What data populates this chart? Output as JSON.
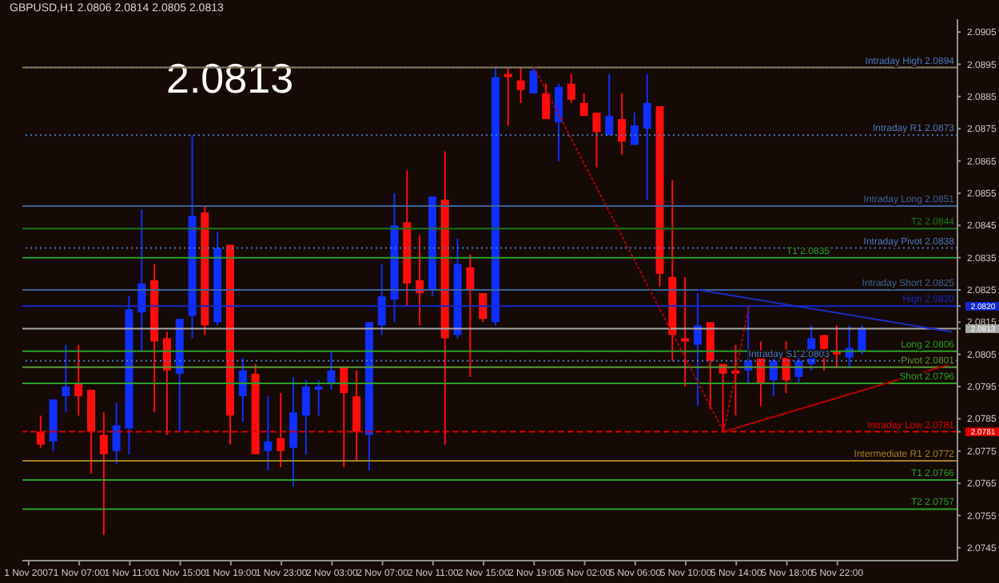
{
  "chart_data": {
    "type": "candlestick",
    "title": "GBPUSD,H1 2.0806 2.0814 2.0805 2.0813",
    "categories": [
      "1 Nov 2007",
      null,
      null,
      null,
      "1 Nov 07:00",
      null,
      null,
      null,
      "1 Nov 11:00",
      null,
      null,
      null,
      "1 Nov 15:00",
      null,
      null,
      null,
      "1 Nov 19:00",
      null,
      null,
      null,
      "1 Nov 23:00",
      null,
      null,
      null,
      "2 Nov 03:00",
      null,
      null,
      null,
      "2 Nov 07:00",
      null,
      null,
      null,
      "2 Nov 11:00",
      null,
      null,
      null,
      "2 Nov 15:00",
      null,
      null,
      null,
      "2 Nov 19:00",
      null,
      null,
      null,
      "5 Nov 02:00",
      null,
      null,
      null,
      "5 Nov 06:00",
      null,
      null,
      null,
      "5 Nov 10:00",
      null,
      null,
      null,
      "5 Nov 14:00",
      null,
      null,
      null,
      "5 Nov 18:00",
      null,
      null,
      null,
      "5 Nov 22:00",
      null,
      null,
      null,
      null,
      null,
      null,
      null,
      null,
      null
    ],
    "ohlc": [
      null,
      [
        2.0781,
        2.0786,
        2.0776,
        2.0777
      ],
      [
        2.0778,
        2.0791,
        2.0775,
        2.0791
      ],
      [
        2.0792,
        2.0808,
        2.0787,
        2.0795
      ],
      [
        2.0796,
        2.0808,
        2.0786,
        2.0792
      ],
      [
        2.0794,
        2.0794,
        2.0768,
        2.0781
      ],
      [
        2.078,
        2.0787,
        2.0749,
        2.0774
      ],
      [
        2.0775,
        2.079,
        2.0771,
        2.0783
      ],
      [
        2.0782,
        2.0823,
        2.0774,
        2.0819
      ],
      [
        2.0818,
        2.085,
        2.0806,
        2.0827
      ],
      [
        2.0828,
        2.0833,
        2.0787,
        2.0809
      ],
      [
        2.081,
        2.0812,
        2.078,
        2.08
      ],
      [
        2.0799,
        2.0816,
        2.0781,
        2.0816
      ],
      [
        2.0817,
        2.0873,
        2.081,
        2.0848
      ],
      [
        2.0849,
        2.0851,
        2.0811,
        2.0814
      ],
      [
        2.0815,
        2.0843,
        2.0814,
        2.0838
      ],
      [
        2.0839,
        2.0839,
        2.0777,
        2.0786
      ],
      [
        2.0792,
        2.0804,
        2.0784,
        2.08
      ],
      [
        2.0799,
        2.0802,
        2.0774,
        2.0774
      ],
      [
        2.0775,
        2.0792,
        2.0769,
        2.0778
      ],
      [
        2.0779,
        2.0793,
        2.077,
        2.0775
      ],
      [
        2.0776,
        2.0798,
        2.0764,
        2.0787
      ],
      [
        2.0786,
        2.0797,
        2.0774,
        2.0795
      ],
      [
        2.0794,
        2.0797,
        2.0786,
        2.0795
      ],
      [
        2.0796,
        2.0806,
        2.0794,
        2.08
      ],
      [
        2.0801,
        2.0801,
        2.077,
        2.0793
      ],
      [
        2.0792,
        2.08,
        2.0772,
        2.0781
      ],
      [
        2.078,
        2.0815,
        2.0769,
        2.0815
      ],
      [
        2.0814,
        2.0833,
        2.0811,
        2.0823
      ],
      [
        2.0822,
        2.0855,
        2.0815,
        2.0845
      ],
      [
        2.0846,
        2.0862,
        2.082,
        2.0827
      ],
      [
        2.0828,
        2.0842,
        2.0814,
        2.0824
      ],
      [
        2.0825,
        2.0854,
        2.0823,
        2.0854
      ],
      [
        2.0853,
        2.0868,
        2.0777,
        2.081
      ],
      [
        2.0811,
        2.0841,
        2.081,
        2.0833
      ],
      [
        2.0832,
        2.0836,
        2.0798,
        2.0825
      ],
      [
        2.0824,
        2.0824,
        2.0815,
        2.0816
      ],
      [
        2.0815,
        2.0894,
        2.0814,
        2.0891
      ],
      [
        2.0892,
        2.0894,
        2.0876,
        2.0891
      ],
      [
        2.089,
        2.0894,
        2.0883,
        2.0887
      ],
      [
        2.0886,
        2.0894,
        2.0886,
        2.0893
      ],
      [
        2.0886,
        2.0889,
        2.0878,
        2.0878
      ],
      [
        2.0877,
        2.0889,
        2.0865,
        2.0888
      ],
      [
        2.0889,
        2.0892,
        2.0883,
        2.0884
      ],
      [
        2.0883,
        2.0886,
        2.0879,
        2.0879
      ],
      [
        2.088,
        2.088,
        2.0863,
        2.0874
      ],
      [
        2.0873,
        2.0892,
        2.0873,
        2.0879
      ],
      [
        2.0878,
        2.0886,
        2.0867,
        2.0871
      ],
      [
        2.087,
        2.088,
        2.087,
        2.0876
      ],
      [
        2.0875,
        2.0892,
        2.0853,
        2.0883
      ],
      [
        2.0882,
        2.0882,
        2.0826,
        2.083
      ],
      [
        2.0829,
        2.0859,
        2.0803,
        2.0811
      ],
      [
        2.081,
        2.0829,
        2.0795,
        2.0809
      ],
      [
        2.0808,
        2.0824,
        2.0789,
        2.0814
      ],
      [
        2.0815,
        2.0815,
        2.0788,
        2.0803
      ],
      [
        2.0802,
        2.0802,
        2.0781,
        2.0799
      ],
      [
        2.08,
        2.0808,
        2.0786,
        2.0799
      ],
      [
        2.08,
        2.082,
        2.0796,
        2.0803
      ],
      [
        2.0804,
        2.0809,
        2.0789,
        2.0796
      ],
      [
        2.0797,
        2.0805,
        2.0792,
        2.0803
      ],
      [
        2.0804,
        2.0809,
        2.0793,
        2.0797
      ],
      [
        2.0798,
        2.0805,
        2.0796,
        2.0803
      ],
      [
        2.0802,
        2.0814,
        2.08,
        2.081
      ],
      [
        2.0811,
        2.0811,
        2.08,
        2.0804
      ],
      [
        2.0806,
        2.0814,
        2.0801,
        2.0805
      ],
      [
        2.0804,
        2.0814,
        2.0801,
        2.0807
      ],
      [
        2.0806,
        2.0814,
        2.0805,
        2.0813
      ],
      null,
      null,
      null,
      null,
      null,
      null,
      null
    ],
    "colors": [
      null,
      "#ff0d0d",
      "#0f2fff",
      "#0f2fff",
      "#ff0d0d",
      "#ff0d0d",
      "#ff0d0d",
      "#0f2fff",
      "#0f2fff",
      "#0f2fff",
      "#ff0d0d",
      "#ff0d0d",
      "#0f2fff",
      "#0f2fff",
      "#ff0d0d",
      "#0f2fff",
      "#ff0d0d",
      "#0f2fff",
      "#ff0d0d",
      "#0f2fff",
      "#ff0d0d",
      "#0f2fff",
      "#0f2fff",
      "#0f2fff",
      "#0f2fff",
      "#ff0d0d",
      "#ff0d0d",
      "#0f2fff",
      "#0f2fff",
      "#0f2fff",
      "#ff0d0d",
      "#ff0d0d",
      "#0f2fff",
      "#ff0d0d",
      "#0f2fff",
      "#ff0d0d",
      "#ff0d0d",
      "#0f2fff",
      "#ff0d0d",
      "#ff0d0d",
      "#0f2fff",
      "#ff0d0d",
      "#0f2fff",
      "#ff0d0d",
      "#ff0d0d",
      "#ff0d0d",
      "#0f2fff",
      "#ff0d0d",
      "#0f2fff",
      "#0f2fff",
      "#ff0d0d",
      "#ff0d0d",
      "#ff0d0d",
      "#0f2fff",
      "#ff0d0d",
      "#ff0d0d",
      "#ff0d0d",
      "#0f2fff",
      "#ff0d0d",
      "#0f2fff",
      "#ff0d0d",
      "#0f2fff",
      "#0f2fff",
      "#ff0d0d",
      "#ff0d0d",
      "#0f2fff",
      "#0f2fff",
      null,
      null,
      null,
      null,
      null,
      null,
      null
    ],
    "series": [
      {
        "type": "line",
        "color": "#1c2cc8",
        "line_style": "solid",
        "values": [
          null,
          null,
          null,
          null,
          null,
          null,
          null,
          null,
          null,
          null,
          null,
          null,
          null,
          null,
          null,
          null,
          null,
          null,
          null,
          null,
          null,
          null,
          null,
          null,
          null,
          null,
          null,
          null,
          null,
          null,
          null,
          null,
          null,
          null,
          null,
          null,
          null,
          null,
          null,
          null,
          null,
          null,
          null,
          null,
          null,
          null,
          null,
          null,
          null,
          null,
          null,
          null,
          null,
          2.0825,
          null,
          null,
          null,
          null,
          null,
          null,
          null,
          null,
          null,
          null,
          null,
          null,
          null,
          null,
          null,
          null,
          null,
          null,
          null,
          2.0812
        ]
      },
      {
        "type": "line",
        "color": "#b40000",
        "line_style": "solid",
        "values": [
          null,
          null,
          null,
          null,
          null,
          null,
          null,
          null,
          null,
          null,
          null,
          null,
          null,
          null,
          null,
          null,
          null,
          null,
          null,
          null,
          null,
          null,
          null,
          null,
          null,
          null,
          null,
          null,
          null,
          null,
          null,
          null,
          null,
          null,
          null,
          null,
          null,
          null,
          null,
          null,
          null,
          null,
          null,
          null,
          null,
          null,
          null,
          null,
          null,
          null,
          null,
          null,
          null,
          null,
          null,
          2.0781,
          null,
          null,
          null,
          null,
          null,
          null,
          null,
          null,
          null,
          null,
          null,
          null,
          null,
          null,
          null,
          null,
          null,
          2.0802
        ]
      },
      {
        "type": "line",
        "color": "#b40000",
        "line_style": "dotted",
        "values": [
          null,
          null,
          null,
          null,
          null,
          null,
          null,
          null,
          null,
          null,
          null,
          null,
          null,
          null,
          null,
          null,
          null,
          null,
          null,
          null,
          null,
          null,
          null,
          null,
          null,
          null,
          null,
          null,
          null,
          null,
          null,
          null,
          null,
          null,
          null,
          null,
          null,
          null,
          null,
          null,
          2.0894,
          null,
          null,
          null,
          null,
          null,
          null,
          null,
          null,
          null,
          null,
          null,
          null,
          null,
          null,
          2.0781,
          null,
          2.082,
          null,
          null,
          null,
          null,
          null,
          null,
          null,
          null,
          null,
          null,
          null,
          null,
          null,
          null,
          null,
          null
        ]
      }
    ],
    "ylim": [
      2.0741,
      2.0909
    ],
    "yticks": [
      2.0745,
      2.0755,
      2.0765,
      2.0775,
      2.0785,
      2.0795,
      2.0805,
      2.0815,
      2.0825,
      2.0835,
      2.0845,
      2.0855,
      2.0865,
      2.0875,
      2.0885,
      2.0895,
      2.0905,
      {
        "value": 2.082,
        "label": "2.0820"
      },
      {
        "value": 2.0813,
        "label": "2.0813"
      },
      {
        "value": 2.0781,
        "label": "2.0781"
      }
    ],
    "ref_lines": [
      {
        "axis": "y",
        "value": 2.0894,
        "color": "#9a7a3a",
        "line_style": "solid"
      },
      {
        "axis": "y",
        "value": 2.0894,
        "label": "Intraday High 2.0894",
        "color": "#4a78c0",
        "line_style": "dotted"
      },
      {
        "axis": "y",
        "value": 2.0873,
        "label": "Intraday R1 2.0873",
        "color": "#4a78c0",
        "line_style": "dotted"
      },
      {
        "axis": "y",
        "value": 2.0851,
        "label": "Intraday Long 2.0851",
        "color": "#3c6494",
        "line_style": "solid"
      },
      {
        "axis": "y",
        "value": 2.0844,
        "label": "T2 2.0844",
        "color": "#1a7a1a",
        "line_style": "solid"
      },
      {
        "axis": "y",
        "value": 2.0838,
        "label": "Intraday Pivot 2.0838",
        "color": "#4a78c0",
        "line_style": "dotted"
      },
      {
        "axis": "y",
        "value": 2.0835,
        "label": "T1 2.0835",
        "color": "#2aa02a",
        "line_style": "solid"
      },
      {
        "axis": "y",
        "value": 2.0825,
        "label": "Intraday Short 2.0825",
        "color": "#3c6494",
        "line_style": "solid"
      },
      {
        "axis": "y",
        "value": 2.082,
        "label": "High 2.0820",
        "color": "#1428c8",
        "line_style": "solid"
      },
      {
        "axis": "y",
        "value": 2.0813,
        "color": "#a8a8a8",
        "line_style": "solid"
      },
      {
        "axis": "y",
        "value": 2.0806,
        "label": "Long 2.0806",
        "color": "#2aa02a",
        "line_style": "solid"
      },
      {
        "axis": "y",
        "value": 2.0803,
        "label": "Intraday S1 2.0803",
        "color": "#4a78c0",
        "line_style": "dotted"
      },
      {
        "axis": "y",
        "value": 2.0801,
        "label": "Pivot 2.0801",
        "color": "#5a9a3a",
        "line_style": "solid"
      },
      {
        "axis": "y",
        "value": 2.0796,
        "label": "Short 2.0796",
        "color": "#2aa02a",
        "line_style": "solid"
      },
      {
        "axis": "y",
        "value": 2.0781,
        "label": "Intraday Low 2.0781",
        "color": "#e00000",
        "line_style": "dashed"
      },
      {
        "axis": "y",
        "value": 2.0772,
        "label": "Intermediate R1 2.0772",
        "color": "#a08020",
        "line_style": "solid"
      },
      {
        "axis": "y",
        "value": 2.0766,
        "label": "T1 2.0766",
        "color": "#2aa02a",
        "line_style": "solid"
      },
      {
        "axis": "y",
        "value": 2.0757,
        "label": "T2 2.0757",
        "color": "#2aa02a",
        "line_style": "solid"
      }
    ],
    "annotations": [
      "2.0813"
    ]
  }
}
